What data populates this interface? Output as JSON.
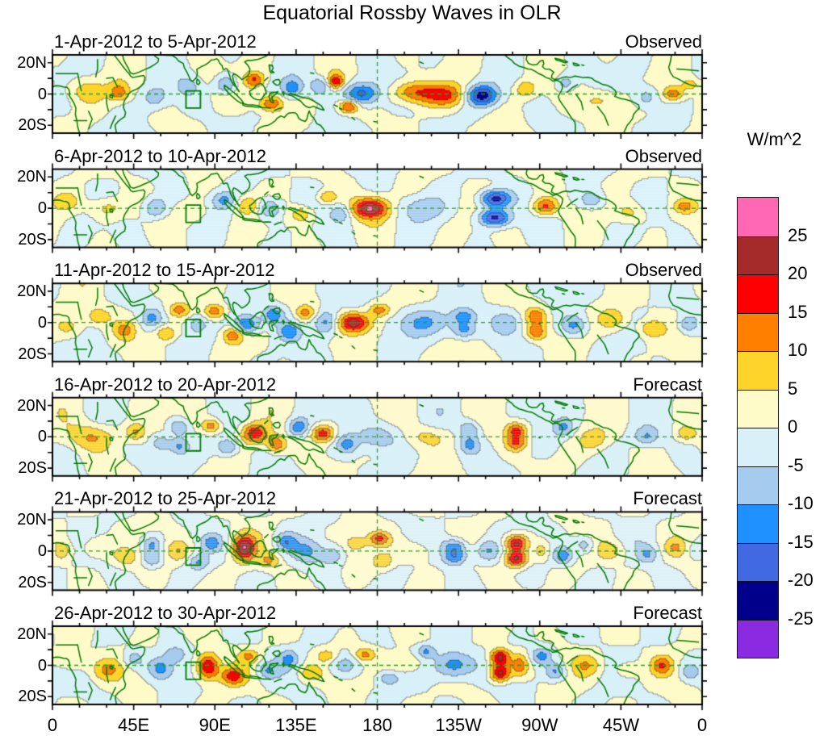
{
  "chart_data": {
    "type": "filled_contour_map_small_multiples",
    "title": "Equatorial Rossby Waves in OLR",
    "units": "W/m^2",
    "x_axis": {
      "tick_labels": [
        "0",
        "45E",
        "90E",
        "135E",
        "180",
        "135W",
        "90W",
        "45W",
        "0"
      ],
      "tick_lons_deg_east": [
        0,
        45,
        90,
        135,
        180,
        225,
        270,
        315,
        360
      ],
      "minor_tick_interval_deg": 15
    },
    "y_axis": {
      "tick_labels": [
        "20N",
        "0",
        "20S"
      ],
      "tick_lats": [
        20,
        0,
        -20
      ],
      "lat_range": [
        -25,
        25
      ],
      "minor_tick_lats": [
        10,
        -10
      ]
    },
    "colorbar": {
      "label_values": [
        "25",
        "20",
        "15",
        "10",
        "5",
        "0",
        "-5",
        "-10",
        "-15",
        "-20",
        "-25"
      ],
      "levels": [
        -25,
        -20,
        -15,
        -10,
        -5,
        0,
        5,
        10,
        15,
        20,
        25
      ],
      "colors_top_to_bottom": [
        "#FF69B4",
        "#A52A2A",
        "#FF0000",
        "#FF7F00",
        "#FFD42A",
        "#FFFBC8",
        "#D8F0F8",
        "#A5CBEE",
        "#1E90FF",
        "#4169E1",
        "#00008B",
        "#8A2BE2"
      ]
    },
    "map": {
      "coastline_color": "#007A00",
      "dashed_line_color": "#2A9E2A",
      "equator_dashed_line": true,
      "dateline_dashed_line_lon": 180,
      "indian_ocean_box": {
        "lon_min": 74,
        "lon_max": 82,
        "lat_min": -9,
        "lat_max": 2
      }
    },
    "panels": [
      {
        "date_range": "1-Apr-2012 to 5-Apr-2012",
        "source": "Observed",
        "texture_phases": [
          0.7,
          2.3,
          4.1
        ],
        "anomaly_centers": [
          [
            18,
            2,
            8,
            8,
            6
          ],
          [
            37,
            1,
            12,
            4,
            4
          ],
          [
            57,
            -2,
            -9,
            5,
            5
          ],
          [
            75,
            5,
            -6,
            4,
            4
          ],
          [
            96,
            6,
            -13,
            4,
            4
          ],
          [
            112,
            9,
            15,
            4,
            3.5
          ],
          [
            121,
            -6,
            16,
            5,
            4
          ],
          [
            133,
            4,
            -12,
            4,
            4
          ],
          [
            148,
            5,
            -11,
            4,
            4
          ],
          [
            157,
            8,
            18,
            3,
            3
          ],
          [
            164,
            -8,
            18,
            4,
            3
          ],
          [
            171,
            0,
            -18,
            7,
            5
          ],
          [
            200,
            1,
            15,
            9,
            5
          ],
          [
            219,
            -1,
            13,
            8,
            5
          ],
          [
            238,
            -1,
            -22,
            6,
            4.5
          ],
          [
            262,
            3,
            10,
            4,
            4
          ],
          [
            284,
            7,
            -9,
            4,
            4
          ],
          [
            305,
            -4,
            8,
            8,
            5
          ],
          [
            329,
            -2,
            -9,
            5,
            5
          ],
          [
            344,
            0,
            13,
            4,
            3
          ],
          [
            354,
            6,
            7,
            4,
            3
          ]
        ]
      },
      {
        "date_range": "6-Apr-2012 to 10-Apr-2012",
        "source": "Observed",
        "texture_phases": [
          1.9,
          0.4,
          3.3
        ],
        "anomaly_centers": [
          [
            8,
            4,
            7,
            5,
            4
          ],
          [
            30,
            0,
            9,
            7,
            5
          ],
          [
            57,
            0,
            -12,
            5,
            5
          ],
          [
            78,
            -3,
            6,
            6,
            5
          ],
          [
            95,
            5,
            -10,
            5,
            4
          ],
          [
            108,
            2,
            10,
            5,
            4
          ],
          [
            120,
            0,
            -13,
            5,
            5
          ],
          [
            138,
            -4,
            9,
            5,
            4
          ],
          [
            152,
            7,
            10,
            4,
            3
          ],
          [
            160,
            -3,
            -9,
            4,
            4
          ],
          [
            176,
            0,
            24,
            7,
            4.5
          ],
          [
            205,
            0,
            -7,
            9,
            5
          ],
          [
            245,
            6,
            -23,
            6,
            3.8
          ],
          [
            245,
            -6,
            -23,
            6,
            3.8
          ],
          [
            273,
            1,
            17,
            5,
            4
          ],
          [
            299,
            5,
            -9,
            5,
            4
          ],
          [
            320,
            -3,
            8,
            6,
            5
          ],
          [
            350,
            1,
            10,
            4,
            3
          ]
        ]
      },
      {
        "date_range": "11-Apr-2012 to 15-Apr-2012",
        "source": "Observed",
        "texture_phases": [
          3.1,
          1.2,
          5.0
        ],
        "anomaly_centers": [
          [
            10,
            -3,
            8,
            6,
            5
          ],
          [
            25,
            4,
            9,
            5,
            4
          ],
          [
            40,
            -5,
            10,
            4,
            4
          ],
          [
            55,
            3,
            -10,
            4,
            4
          ],
          [
            63,
            -7,
            11,
            4,
            3.5
          ],
          [
            70,
            8,
            11,
            4,
            3
          ],
          [
            80,
            -1,
            -8,
            4,
            4
          ],
          [
            90,
            7,
            14,
            4,
            3.5
          ],
          [
            100,
            -8,
            13,
            4,
            3.5
          ],
          [
            108,
            -1,
            -17,
            5,
            4.5
          ],
          [
            122,
            5,
            -14,
            4,
            4
          ],
          [
            131,
            -6,
            -11,
            4,
            4
          ],
          [
            140,
            6,
            12,
            4,
            3.5
          ],
          [
            152,
            0,
            -14,
            5,
            5.5
          ],
          [
            167,
            0,
            24,
            6.5,
            4.5
          ],
          [
            181,
            8,
            12,
            4,
            3
          ],
          [
            205,
            0,
            -9,
            12,
            6
          ],
          [
            228,
            4,
            -13,
            5,
            3.8
          ],
          [
            228,
            -5,
            -13,
            5,
            3.8
          ],
          [
            252,
            0,
            -7,
            6,
            5
          ],
          [
            268,
            4,
            13,
            4,
            3.8
          ],
          [
            268,
            -6,
            13,
            4,
            3.8
          ],
          [
            289,
            -2,
            -11,
            5,
            4.5
          ],
          [
            311,
            2,
            9,
            6,
            5
          ],
          [
            331,
            -4,
            9,
            5,
            4
          ],
          [
            352,
            -1,
            -9,
            4,
            4
          ]
        ]
      },
      {
        "date_range": "16-Apr-2012 to 20-Apr-2012",
        "source": "Forecast",
        "texture_phases": [
          4.3,
          2.0,
          0.6
        ],
        "anomaly_centers": [
          [
            22,
            0,
            10,
            10,
            6
          ],
          [
            46,
            3,
            11,
            4,
            4
          ],
          [
            60,
            -4,
            -9,
            4,
            4
          ],
          [
            70,
            6,
            -11,
            4,
            3.8
          ],
          [
            70,
            -6,
            -11,
            4,
            3.8
          ],
          [
            88,
            7,
            13,
            4,
            3.2
          ],
          [
            97,
            -7,
            -12,
            4,
            3.8
          ],
          [
            112,
            2,
            19,
            5,
            4.5
          ],
          [
            124,
            -5,
            15,
            4,
            4
          ],
          [
            136,
            6,
            -14,
            4,
            4
          ],
          [
            150,
            2,
            19,
            4.5,
            4
          ],
          [
            163,
            -5,
            -10,
            4,
            4
          ],
          [
            180,
            0,
            -10,
            9,
            6
          ],
          [
            207,
            0,
            7,
            9,
            5
          ],
          [
            231,
            5,
            -10,
            4,
            4
          ],
          [
            231,
            -5,
            -10,
            4,
            4
          ],
          [
            257,
            4,
            16,
            4,
            3.5
          ],
          [
            257,
            -4,
            14,
            4,
            3.5
          ],
          [
            283,
            6,
            -10,
            4,
            4
          ],
          [
            300,
            -2,
            8,
            6,
            5
          ],
          [
            329,
            0,
            -10,
            5,
            4
          ],
          [
            351,
            2,
            9,
            4,
            3.5
          ]
        ]
      },
      {
        "date_range": "21-Apr-2012 to 25-Apr-2012",
        "source": "Forecast",
        "texture_phases": [
          5.5,
          2.8,
          1.8
        ],
        "anomaly_centers": [
          [
            4,
            0,
            11,
            4,
            4
          ],
          [
            24,
            3,
            8,
            6,
            5
          ],
          [
            40,
            -4,
            8,
            5,
            4
          ],
          [
            55,
            4,
            -11,
            4,
            3.8
          ],
          [
            55,
            -5,
            -11,
            4,
            3.8
          ],
          [
            70,
            0,
            10,
            5,
            5
          ],
          [
            81,
            -7,
            -9,
            4,
            3.5
          ],
          [
            88,
            5,
            -10,
            4,
            3.5
          ],
          [
            106,
            2,
            22,
            4.5,
            6
          ],
          [
            120,
            -6,
            10,
            4,
            3.5
          ],
          [
            129,
            6,
            -12,
            4,
            3.8
          ],
          [
            141,
            0,
            -9,
            6,
            5
          ],
          [
            155,
            -3,
            -9,
            4,
            4
          ],
          [
            168,
            5,
            9,
            4,
            3
          ],
          [
            181,
            8,
            14,
            4,
            3
          ],
          [
            183,
            -7,
            8,
            4,
            3.5
          ],
          [
            200,
            0,
            7,
            8,
            5
          ],
          [
            223,
            3,
            -14,
            5,
            3.8
          ],
          [
            223,
            -4,
            -14,
            5,
            3.8
          ],
          [
            241,
            0,
            -11,
            5,
            5
          ],
          [
            257,
            5,
            22,
            4.5,
            3.8
          ],
          [
            257,
            -5,
            22,
            4.5,
            3.8
          ],
          [
            271,
            0,
            8,
            3,
            4
          ],
          [
            283,
            -3,
            -14,
            4,
            4
          ],
          [
            295,
            4,
            -10,
            4,
            4
          ],
          [
            310,
            0,
            8,
            6,
            5
          ],
          [
            330,
            -2,
            -9,
            4,
            4
          ],
          [
            345,
            2,
            8,
            4,
            4
          ],
          [
            359,
            0,
            -9,
            4,
            4
          ]
        ]
      },
      {
        "date_range": "26-Apr-2012 to 30-Apr-2012",
        "source": "Forecast",
        "texture_phases": [
          0.2,
          3.6,
          2.9
        ],
        "anomaly_centers": [
          [
            12,
            2,
            8,
            6,
            5
          ],
          [
            30,
            -3,
            9,
            6,
            5
          ],
          [
            45,
            4,
            -8,
            4,
            4
          ],
          [
            60,
            -2,
            -12,
            5,
            5
          ],
          [
            68,
            7,
            -9,
            4,
            3.5
          ],
          [
            86,
            -1,
            22,
            4.5,
            6
          ],
          [
            100,
            -7,
            15,
            4.5,
            3.8
          ],
          [
            109,
            6,
            9,
            4,
            3
          ],
          [
            119,
            -3,
            -9,
            4,
            4
          ],
          [
            131,
            4,
            -9,
            4,
            4
          ],
          [
            143,
            -5,
            9,
            5,
            4
          ],
          [
            152,
            6,
            8,
            4,
            3
          ],
          [
            162,
            0,
            -8,
            6,
            5
          ],
          [
            173,
            7,
            11,
            4,
            3
          ],
          [
            186,
            -8,
            -8,
            4,
            3
          ],
          [
            196,
            1,
            8,
            7,
            5
          ],
          [
            207,
            9,
            -10,
            3.5,
            3
          ],
          [
            222,
            0,
            -16,
            8,
            6.5
          ],
          [
            248,
            5,
            23,
            4,
            3.8
          ],
          [
            248,
            -5,
            23,
            4,
            3.8
          ],
          [
            259,
            0,
            13,
            3.5,
            5
          ],
          [
            271,
            6,
            -12,
            4,
            3.8
          ],
          [
            279,
            -4,
            -11,
            4,
            4
          ],
          [
            296,
            0,
            8,
            6,
            5
          ],
          [
            318,
            -3,
            8,
            5,
            4
          ],
          [
            338,
            0,
            12,
            4,
            4
          ],
          [
            353,
            -4,
            -8,
            4,
            4
          ]
        ]
      }
    ]
  }
}
